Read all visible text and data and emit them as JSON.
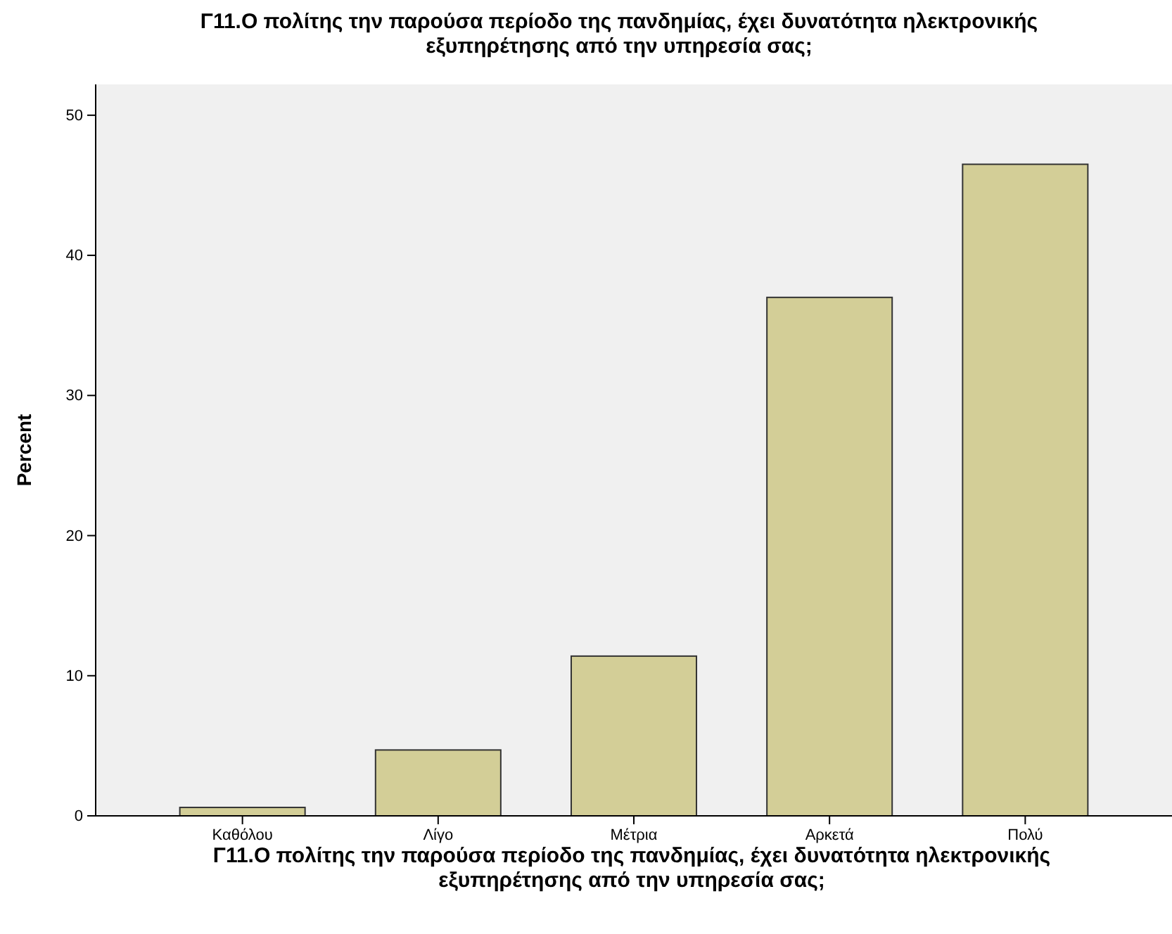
{
  "chart_data": {
    "type": "bar",
    "title": "Γ11.Ο πολίτης την παρούσα περίοδο της πανδημίας, έχει δυνατότητα ηλεκτρονικής εξυπηρέτησης από την υπηρεσία σας;",
    "xlabel": "Γ11.Ο πολίτης την παρούσα περίοδο της πανδημίας, έχει δυνατότητα ηλεκτρονικής εξυπηρέτησης από την υπηρεσία σας;",
    "ylabel": "Percent",
    "categories": [
      "Καθόλου",
      "Λίγο",
      "Μέτρια",
      "Αρκετά",
      "Πολύ"
    ],
    "values": [
      0.6,
      4.7,
      11.4,
      37.0,
      46.5
    ],
    "color": "#d3ce97",
    "ylim": [
      0,
      52.2
    ],
    "yticks": [
      0,
      10,
      20,
      30,
      40,
      50
    ],
    "grid": false
  }
}
